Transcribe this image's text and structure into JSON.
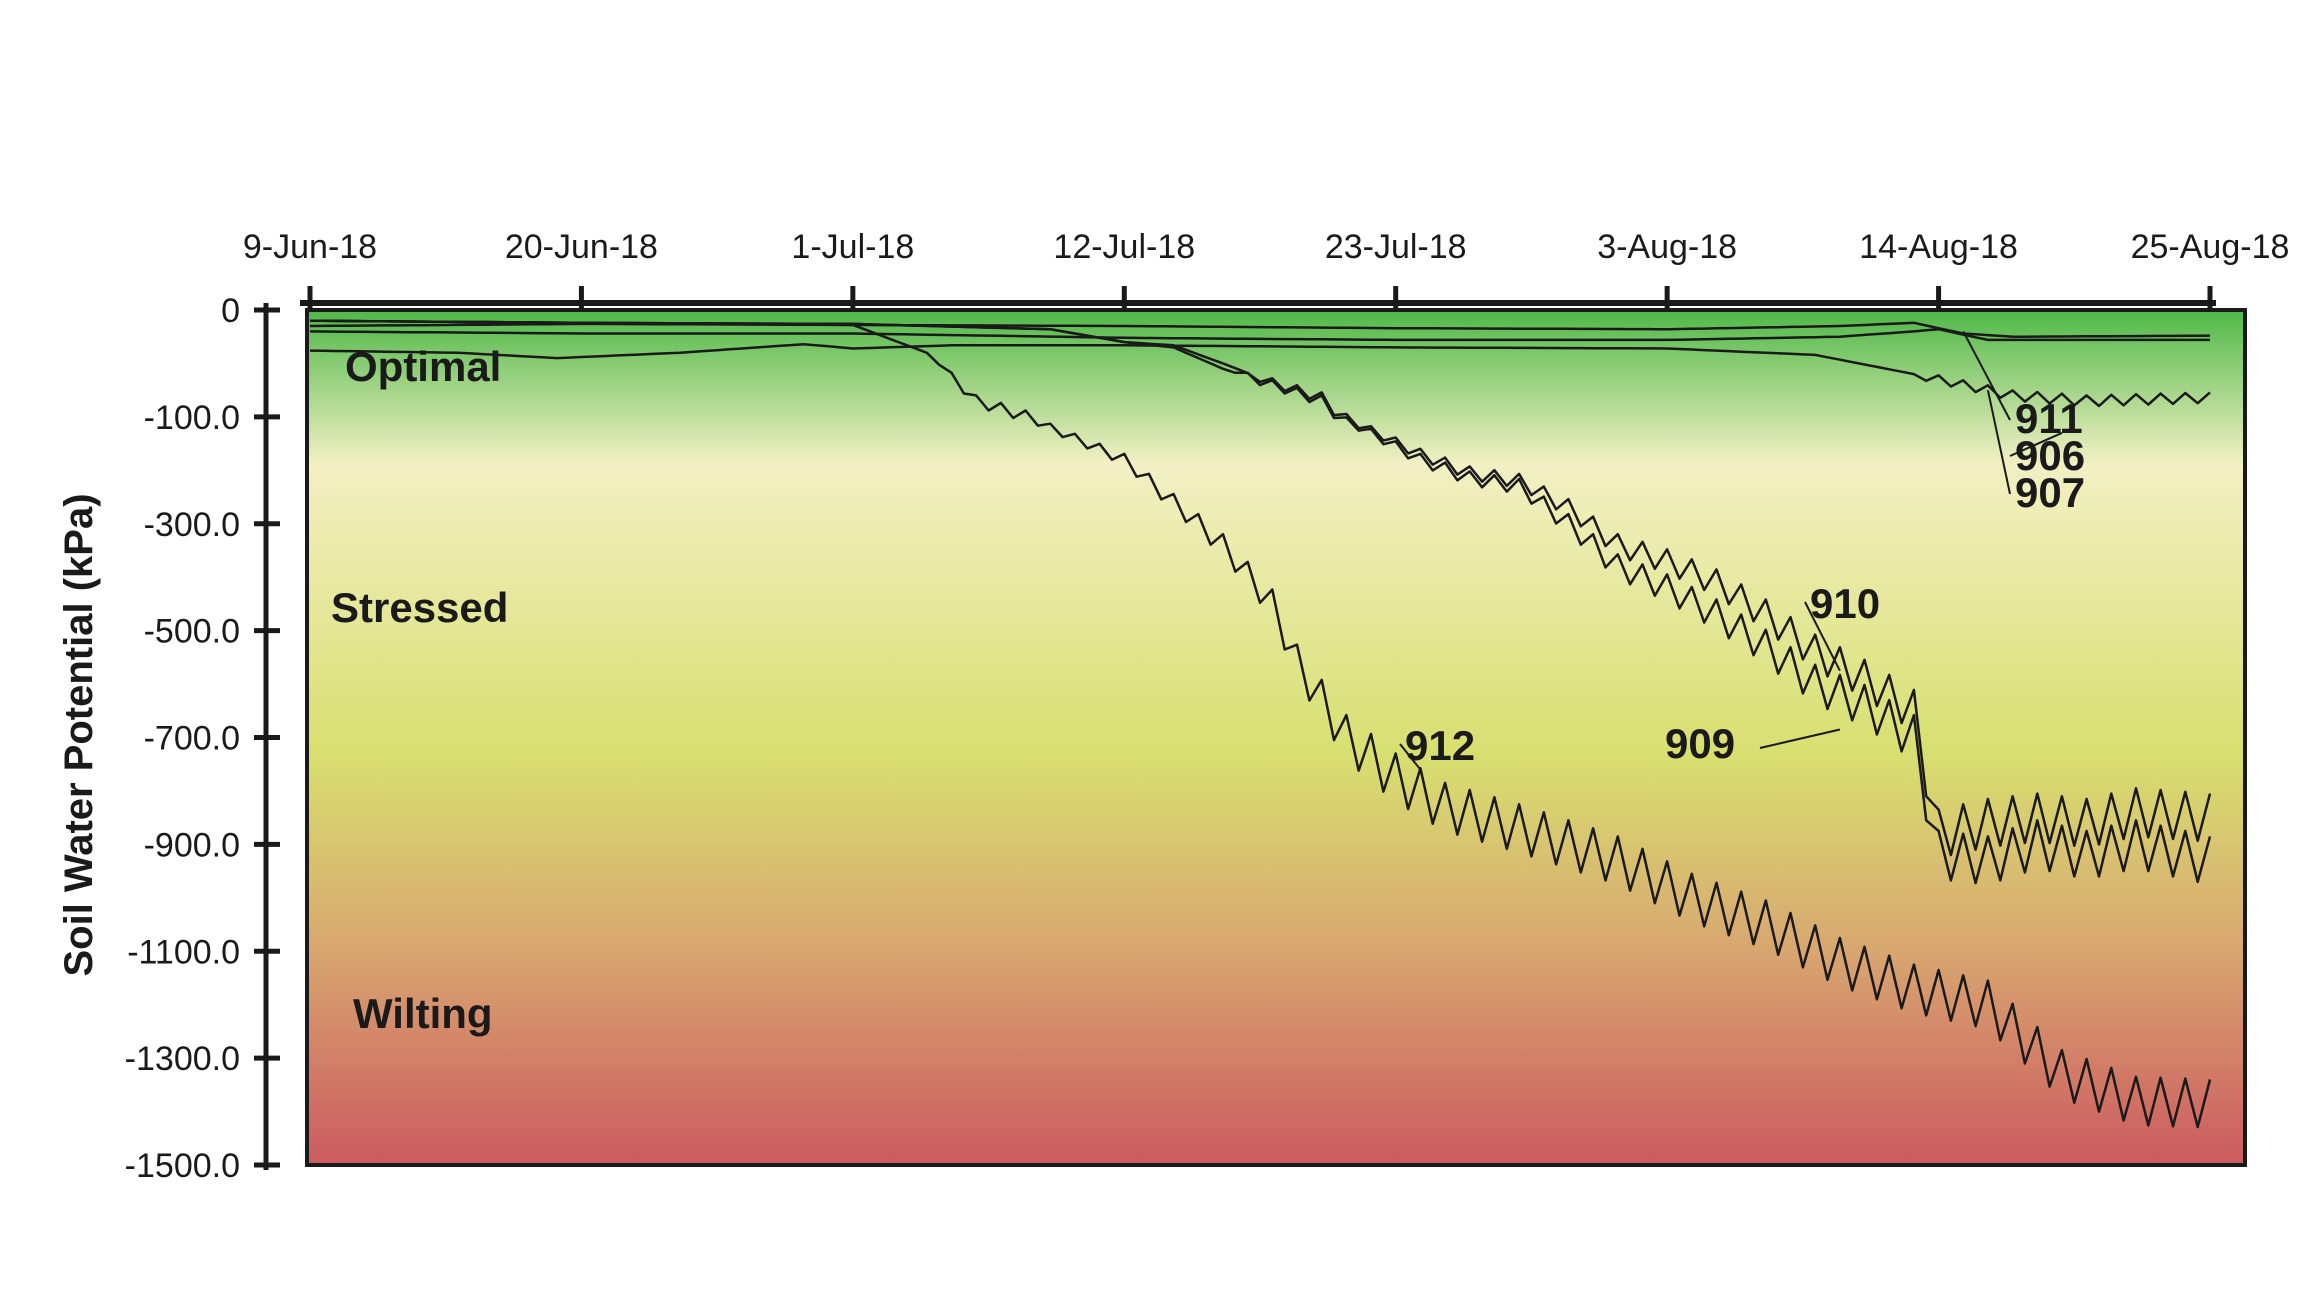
{
  "chart_data": {
    "type": "line",
    "title": "",
    "xlabel": "",
    "ylabel": "Soil Water Potential (kPa)",
    "x_tick_labels": [
      "9-Jun-18",
      "20-Jun-18",
      "1-Jul-18",
      "12-Jul-18",
      "23-Jul-18",
      "3-Aug-18",
      "14-Aug-18",
      "25-Aug-18"
    ],
    "x_tick_dates": [
      "2018-06-09",
      "2018-06-20",
      "2018-07-01",
      "2018-07-12",
      "2018-07-23",
      "2018-08-03",
      "2018-08-14",
      "2018-08-25"
    ],
    "xlim": [
      "2018-06-09",
      "2018-08-25"
    ],
    "y_tick_labels": [
      "0",
      "-100.0",
      "-300.0",
      "-500.0",
      "-700.0",
      "-900.0",
      "-1100.0",
      "-1300.0",
      "-1500.0"
    ],
    "y_axis_note": "tick spacing is uniform but labels are not linear in kPa (first step 0 to -100, then 200 kPa per step)",
    "ylim": [
      -1500,
      0
    ],
    "background_gradient": [
      "#4fb848",
      "#f2f0c4",
      "#d8df70",
      "#d8a670",
      "#cc5a60"
    ],
    "zones": [
      {
        "label": "Optimal",
        "value": -30
      },
      {
        "label": "Stressed",
        "value": -450
      },
      {
        "label": "Wilting",
        "value": -1250
      }
    ],
    "grid": false,
    "legend": "none",
    "series": [
      {
        "name": "906",
        "label_at": [
          "2018-08-19",
          -130
        ],
        "points": [
          [
            "2018-06-09",
            -15
          ],
          [
            "2018-06-20",
            -13
          ],
          [
            "2018-07-01",
            -14
          ],
          [
            "2018-07-12",
            -15
          ],
          [
            "2018-07-23",
            -17
          ],
          [
            "2018-08-03",
            -18
          ],
          [
            "2018-08-10",
            -15
          ],
          [
            "2018-08-13",
            -12
          ],
          [
            "2018-08-15",
            -22
          ],
          [
            "2018-08-17",
            -25
          ],
          [
            "2018-08-25",
            -24
          ]
        ]
      },
      {
        "name": "907",
        "label_at": [
          "2018-08-16",
          -75
        ],
        "points": [
          [
            "2018-06-09",
            -38
          ],
          [
            "2018-06-15",
            -40
          ],
          [
            "2018-06-19",
            -45
          ],
          [
            "2018-06-24",
            -40
          ],
          [
            "2018-06-29",
            -32
          ],
          [
            "2018-07-01",
            -36
          ],
          [
            "2018-07-05",
            -33
          ],
          [
            "2018-07-12",
            -33
          ],
          [
            "2018-07-23",
            -35
          ],
          [
            "2018-08-03",
            -36
          ],
          [
            "2018-08-09",
            -42
          ],
          [
            "2018-08-13",
            -60
          ],
          [
            "2018-08-17",
            -80
          ],
          [
            "2018-08-20",
            -85
          ],
          [
            "2018-08-25",
            -82
          ]
        ]
      },
      {
        "name": "911",
        "label_at": [
          "2018-08-15",
          -20
        ],
        "points": [
          [
            "2018-06-09",
            -20
          ],
          [
            "2018-06-20",
            -22
          ],
          [
            "2018-07-01",
            -22
          ],
          [
            "2018-07-12",
            -26
          ],
          [
            "2018-07-23",
            -28
          ],
          [
            "2018-08-03",
            -28
          ],
          [
            "2018-08-10",
            -25
          ],
          [
            "2018-08-13",
            -20
          ],
          [
            "2018-08-14",
            -18
          ],
          [
            "2018-08-16",
            -28
          ],
          [
            "2018-08-25",
            -28
          ]
        ]
      },
      {
        "name": "909",
        "label_at": [
          "2018-08-10",
          -685
        ],
        "points": [
          [
            "2018-06-09",
            -10
          ],
          [
            "2018-06-20",
            -12
          ],
          [
            "2018-07-01",
            -13
          ],
          [
            "2018-07-09",
            -18
          ],
          [
            "2018-07-12",
            -30
          ],
          [
            "2018-07-14",
            -35
          ],
          [
            "2018-07-16",
            -55
          ],
          [
            "2018-07-18",
            -70
          ],
          [
            "2018-07-20",
            -85
          ],
          [
            "2018-07-22",
            -130
          ],
          [
            "2018-07-24",
            -180
          ],
          [
            "2018-07-26",
            -215
          ],
          [
            "2018-07-28",
            -230
          ],
          [
            "2018-07-30",
            -300
          ],
          [
            "2018-08-01",
            -380
          ],
          [
            "2018-08-03",
            -420
          ],
          [
            "2018-08-05",
            -470
          ],
          [
            "2018-08-07",
            -530
          ],
          [
            "2018-08-09",
            -600
          ],
          [
            "2018-08-11",
            -640
          ],
          [
            "2018-08-13",
            -700
          ],
          [
            "2018-08-14",
            -920
          ],
          [
            "2018-08-16",
            -930
          ],
          [
            "2018-08-18",
            -900
          ],
          [
            "2018-08-20",
            -920
          ],
          [
            "2018-08-22",
            -900
          ],
          [
            "2018-08-25",
            -930
          ]
        ]
      },
      {
        "name": "910",
        "label_at": [
          "2018-08-10",
          -575
        ],
        "points": [
          [
            "2018-06-09",
            -10
          ],
          [
            "2018-06-20",
            -12
          ],
          [
            "2018-07-01",
            -13
          ],
          [
            "2018-07-09",
            -18
          ],
          [
            "2018-07-12",
            -30
          ],
          [
            "2018-07-14",
            -33
          ],
          [
            "2018-07-16",
            -50
          ],
          [
            "2018-07-18",
            -68
          ],
          [
            "2018-07-20",
            -82
          ],
          [
            "2018-07-22",
            -125
          ],
          [
            "2018-07-24",
            -170
          ],
          [
            "2018-07-26",
            -205
          ],
          [
            "2018-07-28",
            -220
          ],
          [
            "2018-07-30",
            -270
          ],
          [
            "2018-08-01",
            -340
          ],
          [
            "2018-08-03",
            -370
          ],
          [
            "2018-08-05",
            -410
          ],
          [
            "2018-08-07",
            -470
          ],
          [
            "2018-08-09",
            -540
          ],
          [
            "2018-08-11",
            -590
          ],
          [
            "2018-08-13",
            -650
          ],
          [
            "2018-08-14",
            -880
          ],
          [
            "2018-08-16",
            -860
          ],
          [
            "2018-08-18",
            -850
          ],
          [
            "2018-08-20",
            -860
          ],
          [
            "2018-08-22",
            -840
          ],
          [
            "2018-08-25",
            -850
          ]
        ]
      },
      {
        "name": "912",
        "label_at": [
          "2018-07-24",
          -760
        ],
        "points": [
          [
            "2018-06-09",
            -10
          ],
          [
            "2018-06-20",
            -12
          ],
          [
            "2018-07-01",
            -14
          ],
          [
            "2018-07-04",
            -40
          ],
          [
            "2018-07-06",
            -85
          ],
          [
            "2018-07-08",
            -100
          ],
          [
            "2018-07-10",
            -140
          ],
          [
            "2018-07-12",
            -180
          ],
          [
            "2018-07-14",
            -260
          ],
          [
            "2018-07-16",
            -340
          ],
          [
            "2018-07-18",
            -450
          ],
          [
            "2018-07-19",
            -560
          ],
          [
            "2018-07-21",
            -700
          ],
          [
            "2018-07-23",
            -775
          ],
          [
            "2018-07-25",
            -830
          ],
          [
            "2018-07-28",
            -870
          ],
          [
            "2018-08-01",
            -930
          ],
          [
            "2018-08-04",
            -1000
          ],
          [
            "2018-08-07",
            -1050
          ],
          [
            "2018-08-10",
            -1120
          ],
          [
            "2018-08-13",
            -1170
          ],
          [
            "2018-08-16",
            -1200
          ],
          [
            "2018-08-19",
            -1330
          ],
          [
            "2018-08-22",
            -1380
          ],
          [
            "2018-08-25",
            -1385
          ]
        ]
      }
    ]
  }
}
